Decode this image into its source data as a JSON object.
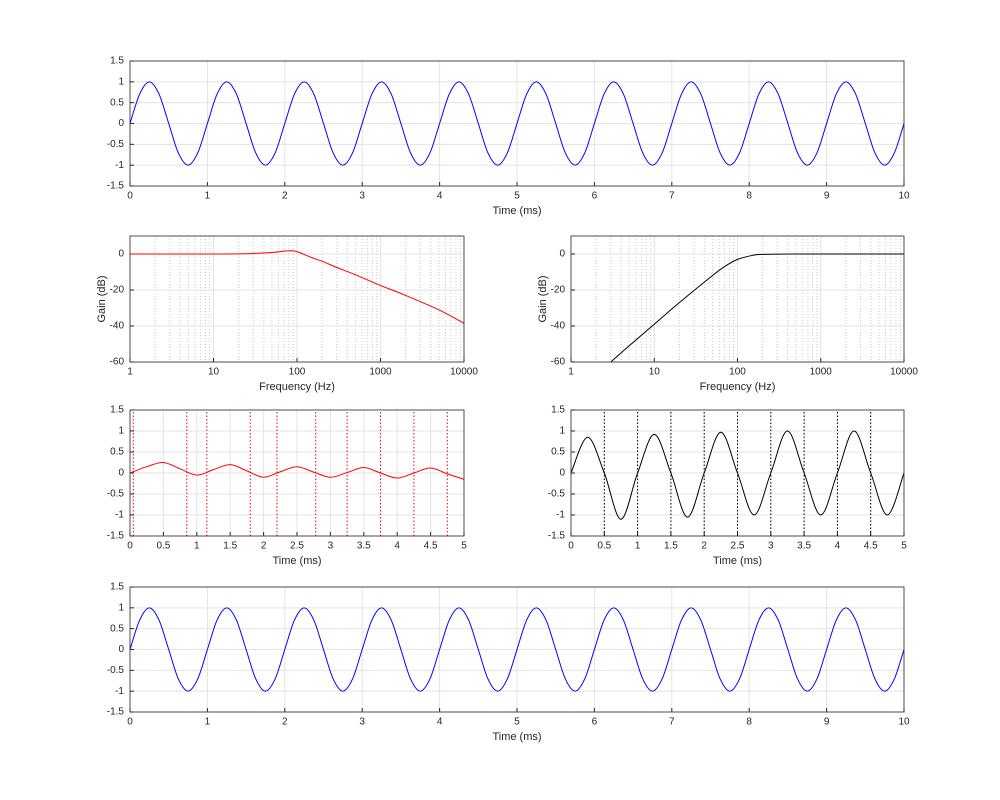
{
  "chart_data": [
    {
      "type": "line",
      "xlabel": "Time (ms)",
      "xlim": [
        0,
        10
      ],
      "ylim": [
        -1.5,
        1.5
      ],
      "xticks": [
        0,
        1,
        2,
        3,
        4,
        5,
        6,
        7,
        8,
        9,
        10
      ],
      "yticks": [
        -1.5,
        -1,
        -0.5,
        0,
        0.5,
        1,
        1.5
      ],
      "grid": true,
      "color": "#0000ff",
      "x": [
        0,
        0.125,
        0.25,
        0.375,
        0.5,
        0.625,
        0.75,
        0.875,
        1,
        1.125,
        1.25,
        1.375,
        1.5,
        1.625,
        1.75,
        1.875,
        2,
        2.125,
        2.25,
        2.375,
        2.5,
        2.625,
        2.75,
        2.875,
        3,
        3.125,
        3.25,
        3.375,
        3.5,
        3.625,
        3.75,
        3.875,
        4,
        4.125,
        4.25,
        4.375,
        4.5,
        4.625,
        4.75,
        4.875,
        5,
        5.125,
        5.25,
        5.375,
        5.5,
        5.625,
        5.75,
        5.875,
        6,
        6.125,
        6.25,
        6.375,
        6.5,
        6.625,
        6.75,
        6.875,
        7,
        7.125,
        7.25,
        7.375,
        7.5,
        7.625,
        7.75,
        7.875,
        8,
        8.125,
        8.25,
        8.375,
        8.5,
        8.625,
        8.75,
        8.875,
        9,
        9.125,
        9.25,
        9.375,
        9.5,
        9.625,
        9.75,
        9.875,
        10
      ],
      "values": [
        0,
        0.707,
        1,
        0.707,
        0,
        -0.707,
        -1,
        -0.707,
        0,
        0.707,
        1,
        0.707,
        0,
        -0.707,
        -1,
        -0.707,
        0,
        0.707,
        1,
        0.707,
        0,
        -0.707,
        -1,
        -0.707,
        0,
        0.707,
        1,
        0.707,
        0,
        -0.707,
        -1,
        -0.707,
        0,
        0.707,
        1,
        0.707,
        0,
        -0.707,
        -1,
        -0.707,
        0,
        0.707,
        1,
        0.707,
        0,
        -0.707,
        -1,
        -0.707,
        0,
        0.707,
        1,
        0.707,
        0,
        -0.707,
        -1,
        -0.707,
        0,
        0.707,
        1,
        0.707,
        0,
        -0.707,
        -1,
        -0.707,
        0,
        0.707,
        1,
        0.707,
        0,
        -0.707,
        -1,
        -0.707,
        0,
        0.707,
        1,
        0.707,
        0,
        -0.707,
        -1,
        -0.707,
        0
      ]
    },
    {
      "type": "line",
      "xlabel": "Frequency (Hz)",
      "ylabel": "Gain (dB)",
      "xscale": "log",
      "xlim": [
        1,
        10000
      ],
      "ylim": [
        -60,
        10
      ],
      "xticks": [
        1,
        10,
        100,
        1000,
        10000
      ],
      "yticks": [
        -60,
        -40,
        -20,
        0
      ],
      "grid": true,
      "color": "#ff0000",
      "x": [
        1,
        2,
        5,
        10,
        20,
        30,
        50,
        70,
        85,
        100,
        150,
        200,
        300,
        500,
        1000,
        2000,
        5000,
        10000
      ],
      "values": [
        0,
        0,
        0,
        0,
        0.1,
        0.3,
        0.8,
        1.6,
        1.8,
        1.3,
        -2,
        -4,
        -7.5,
        -11.5,
        -17.5,
        -23,
        -31,
        -38.5
      ]
    },
    {
      "type": "line",
      "xlabel": "Frequency (Hz)",
      "ylabel": "Gain (dB)",
      "xscale": "log",
      "xlim": [
        1,
        10000
      ],
      "ylim": [
        -60,
        10
      ],
      "xticks": [
        1,
        10,
        100,
        1000,
        10000
      ],
      "yticks": [
        -60,
        -40,
        -20,
        0
      ],
      "grid": true,
      "color": "#000000",
      "x": [
        3,
        5,
        10,
        20,
        50,
        70,
        100,
        150,
        200,
        500,
        1000,
        10000
      ],
      "values": [
        -60,
        -51,
        -39,
        -27,
        -12,
        -7,
        -3,
        -0.8,
        -0.2,
        0,
        0,
        0
      ]
    },
    {
      "type": "line",
      "xlabel": "Time (ms)",
      "xlim": [
        0,
        5
      ],
      "ylim": [
        -1.5,
        1.5
      ],
      "xticks": [
        0,
        0.5,
        1,
        1.5,
        2,
        2.5,
        3,
        3.5,
        4,
        4.5,
        5
      ],
      "yticks": [
        -1.5,
        -1,
        -0.5,
        0,
        0.5,
        1,
        1.5
      ],
      "grid": true,
      "color": "#ff0000",
      "x": [
        0,
        0.25,
        0.5,
        0.75,
        1,
        1.25,
        1.5,
        1.75,
        2,
        2.25,
        2.5,
        2.75,
        3,
        3.25,
        3.5,
        3.75,
        4,
        4.25,
        4.5,
        4.75,
        5
      ],
      "values": [
        0,
        0.15,
        0.25,
        0.1,
        -0.05,
        0.08,
        0.2,
        0.05,
        -0.1,
        0.03,
        0.15,
        0.02,
        -0.1,
        0.01,
        0.13,
        0,
        -0.12,
        0,
        0.12,
        -0.02,
        -0.15
      ],
      "vlines": [
        0.05,
        0.85,
        1.15,
        1.8,
        2.2,
        2.78,
        3.25,
        3.75,
        4.25,
        4.75
      ]
    },
    {
      "type": "line",
      "xlabel": "Time (ms)",
      "xlim": [
        0,
        5
      ],
      "ylim": [
        -1.5,
        1.5
      ],
      "xticks": [
        0,
        0.5,
        1,
        1.5,
        2,
        2.5,
        3,
        3.5,
        4,
        4.5,
        5
      ],
      "yticks": [
        -1.5,
        -1,
        -0.5,
        0,
        0.5,
        1,
        1.5
      ],
      "grid": true,
      "color": "#000000",
      "x": [
        0,
        0.25,
        0.5,
        0.75,
        1,
        1.25,
        1.5,
        1.75,
        2,
        2.25,
        2.5,
        2.75,
        3,
        3.25,
        3.5,
        3.75,
        4,
        4.25,
        4.5,
        4.75,
        5
      ],
      "values": [
        0,
        0.85,
        0,
        -1.1,
        0,
        0.92,
        0,
        -1.05,
        0,
        0.97,
        0,
        -1,
        0,
        1,
        0,
        -1,
        0,
        1,
        0,
        -1,
        0
      ],
      "vlines": [
        0.5,
        1,
        1.5,
        2,
        2.5,
        3,
        3.5,
        4,
        4.5
      ]
    },
    {
      "type": "line",
      "xlabel": "Time (ms)",
      "xlim": [
        0,
        10
      ],
      "ylim": [
        -1.5,
        1.5
      ],
      "xticks": [
        0,
        1,
        2,
        3,
        4,
        5,
        6,
        7,
        8,
        9,
        10
      ],
      "yticks": [
        -1.5,
        -1,
        -0.5,
        0,
        0.5,
        1,
        1.5
      ],
      "grid": true,
      "color": "#0000ff",
      "x": [
        0,
        0.125,
        0.25,
        0.375,
        0.5,
        0.625,
        0.75,
        0.875,
        1,
        1.125,
        1.25,
        1.375,
        1.5,
        1.625,
        1.75,
        1.875,
        2,
        2.125,
        2.25,
        2.375,
        2.5,
        2.625,
        2.75,
        2.875,
        3,
        3.125,
        3.25,
        3.375,
        3.5,
        3.625,
        3.75,
        3.875,
        4,
        4.125,
        4.25,
        4.375,
        4.5,
        4.625,
        4.75,
        4.875,
        5,
        5.125,
        5.25,
        5.375,
        5.5,
        5.625,
        5.75,
        5.875,
        6,
        6.125,
        6.25,
        6.375,
        6.5,
        6.625,
        6.75,
        6.875,
        7,
        7.125,
        7.25,
        7.375,
        7.5,
        7.625,
        7.75,
        7.875,
        8,
        8.125,
        8.25,
        8.375,
        8.5,
        8.625,
        8.75,
        8.875,
        9,
        9.125,
        9.25,
        9.375,
        9.5,
        9.625,
        9.75,
        9.875,
        10
      ],
      "values": [
        0,
        0.707,
        1,
        0.707,
        0,
        -0.707,
        -1,
        -0.707,
        0,
        0.707,
        1,
        0.707,
        0,
        -0.707,
        -1,
        -0.707,
        0,
        0.707,
        1,
        0.707,
        0,
        -0.707,
        -1,
        -0.707,
        0,
        0.707,
        1,
        0.707,
        0,
        -0.707,
        -1,
        -0.707,
        0,
        0.707,
        1,
        0.707,
        0,
        -0.707,
        -1,
        -0.707,
        0,
        0.707,
        1,
        0.707,
        0,
        -0.707,
        -1,
        -0.707,
        0,
        0.707,
        1,
        0.707,
        0,
        -0.707,
        -1,
        -0.707,
        0,
        0.707,
        1,
        0.707,
        0,
        -0.707,
        -1,
        -0.707,
        0,
        0.707,
        1,
        0.707,
        0,
        -0.707,
        -1,
        -0.707,
        0,
        0.707,
        1,
        0.707,
        0,
        -0.707,
        -1,
        -0.707,
        0
      ]
    }
  ]
}
